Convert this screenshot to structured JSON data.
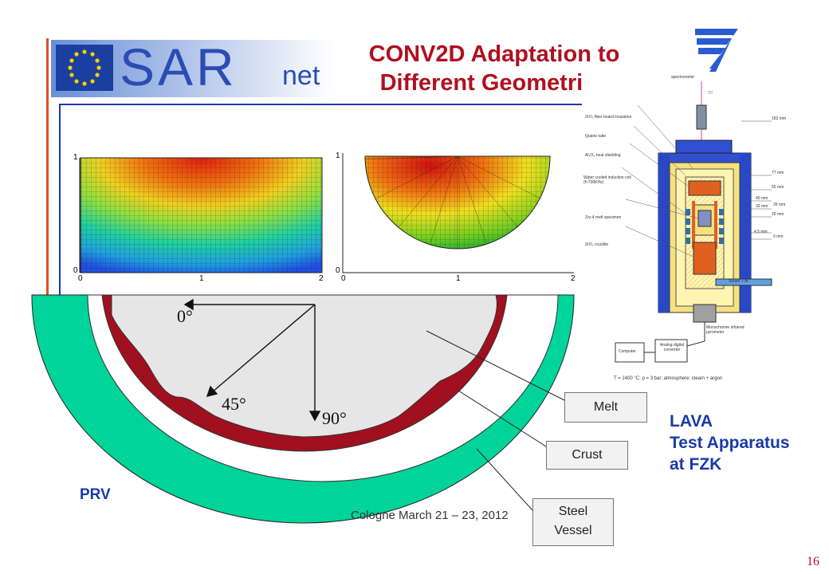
{
  "logo": {
    "text_main": "SAR",
    "text_sub": "net"
  },
  "title": {
    "line1": "CONV2D Adaptation to",
    "line2": "Different Geometries"
  },
  "lava": {
    "line1": "LAVA",
    "line2": "Test Apparatus",
    "line3": "at FZK"
  },
  "labels": {
    "prv": "PRV",
    "melt": "Melt",
    "crust": "Crust",
    "steel_line1": "Steel",
    "steel_line2": "Vessel",
    "angle_0": "0°",
    "angle_45": "45°",
    "angle_90": "90°"
  },
  "plots": {
    "left_ticks": {
      "y1": "1",
      "y0": "0",
      "x0": "0",
      "x1": "1",
      "x2": "2"
    },
    "right_ticks": {
      "y1": "1",
      "y0": "0",
      "x0": "0",
      "x1": "1",
      "x2": "2"
    }
  },
  "apparatus": {
    "labels": [
      "spectrometer",
      "TC",
      "ZrO₂ fiber board insulation",
      "Quartz tube",
      "Al₂O₃ heat shielding",
      "Water cooled induction coil (f≈700KHz)",
      "Zry-4 melt specimen",
      "ZrO₂ crucible",
      "163 mm",
      "77 mm",
      "55 mm",
      "40 mm",
      "39 mm",
      "32 mm",
      "26 mm",
      "4.5 mm",
      "0 mm",
      "Steam + Ar",
      "Monochrome infrared pyrometer",
      "Analog digital converter",
      "Computer"
    ],
    "caption": "T = 2400 °C; p = 3 bar; atmosphere: steam + argon"
  },
  "footer": "Cologne March 21 – 23, 2012",
  "page_number": "16",
  "colors": {
    "title": "#b01020",
    "accent_blue": "#1a3aa8",
    "vessel": "#00d49a",
    "crust": "#a0101e"
  }
}
